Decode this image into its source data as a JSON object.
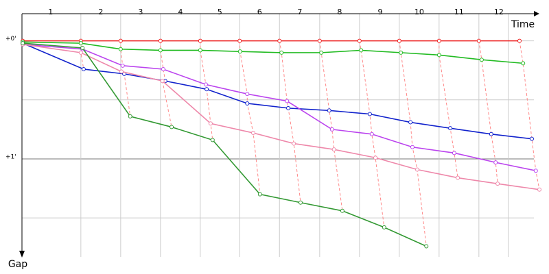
{
  "chart_data": {
    "type": "line",
    "x_label": "Time",
    "y_label": "Gap",
    "xlim": [
      0,
      13.1
    ],
    "ylim": [
      -0.23,
      1.83
    ],
    "xticks": [
      1.48,
      2.48,
      3.48,
      4.48,
      5.47,
      6.47,
      7.48,
      8.48,
      9.48,
      10.48,
      11.48,
      12.22
    ],
    "lap_labels": [
      {
        "value": 0.72,
        "label": "1"
      },
      {
        "value": 1.98,
        "label": "2"
      },
      {
        "value": 2.98,
        "label": "3"
      },
      {
        "value": 3.98,
        "label": "4"
      },
      {
        "value": 4.97,
        "label": "5"
      },
      {
        "value": 5.97,
        "label": "6"
      },
      {
        "value": 6.98,
        "label": "7"
      },
      {
        "value": 7.98,
        "label": "8"
      },
      {
        "value": 9.0,
        "label": "9"
      },
      {
        "value": 9.98,
        "label": "10"
      },
      {
        "value": 10.98,
        "label": "11"
      },
      {
        "value": 11.98,
        "label": "12"
      }
    ],
    "yticks": [
      {
        "value": 0,
        "label": "+0'"
      },
      {
        "value": 1,
        "label": "+1'"
      }
    ],
    "minor_grid": [
      0.5,
      1.5
    ],
    "series": [
      {
        "color": "#ee2222",
        "x": [
          0.02,
          1.48,
          2.48,
          3.48,
          4.48,
          5.47,
          6.47,
          7.48,
          8.48,
          9.48,
          10.48,
          11.48,
          12.5
        ],
        "values": [
          0,
          0,
          0,
          0,
          0,
          0,
          0,
          0,
          0,
          0,
          0,
          0,
          0
        ]
      },
      {
        "color": "#22bb22",
        "x": [
          0.02,
          1.48,
          2.48,
          3.48,
          4.48,
          5.48,
          6.52,
          7.52,
          8.52,
          9.52,
          10.48,
          11.55,
          12.59
        ],
        "values": [
          0.01,
          0.02,
          0.07,
          0.08,
          0.08,
          0.09,
          0.1,
          0.1,
          0.08,
          0.1,
          0.12,
          0.16,
          0.19
        ]
      },
      {
        "color": "#1122cc",
        "x": [
          0.02,
          1.55,
          2.57,
          3.6,
          4.64,
          5.66,
          6.69,
          7.72,
          8.74,
          9.76,
          10.76,
          11.79,
          12.81
        ],
        "values": [
          0.02,
          0.24,
          0.28,
          0.34,
          0.41,
          0.53,
          0.57,
          0.59,
          0.62,
          0.69,
          0.74,
          0.79,
          0.83
        ]
      },
      {
        "color": "#bb44ee",
        "x": [
          0.02,
          1.52,
          2.53,
          3.55,
          4.62,
          5.66,
          6.66,
          7.79,
          8.79,
          9.81,
          10.86,
          11.9,
          12.91
        ],
        "values": [
          0.03,
          0.07,
          0.21,
          0.24,
          0.37,
          0.45,
          0.51,
          0.75,
          0.79,
          0.9,
          0.95,
          1.03,
          1.1
        ]
      },
      {
        "color": "#ee88aa",
        "x": [
          0.02,
          1.48,
          2.5,
          3.53,
          4.74,
          5.81,
          6.83,
          7.84,
          8.88,
          9.93,
          10.95,
          11.95,
          13.0
        ],
        "values": [
          0.03,
          0.1,
          0.26,
          0.34,
          0.7,
          0.78,
          0.87,
          0.92,
          0.99,
          1.09,
          1.16,
          1.21,
          1.26
        ]
      },
      {
        "color": "#339933",
        "x": [
          0.02,
          1.52,
          2.72,
          3.76,
          4.79,
          5.98,
          7.0,
          8.05,
          9.1,
          10.16
        ],
        "values": [
          0.02,
          0.06,
          0.64,
          0.73,
          0.84,
          1.3,
          1.37,
          1.44,
          1.58,
          1.74
        ]
      }
    ]
  }
}
